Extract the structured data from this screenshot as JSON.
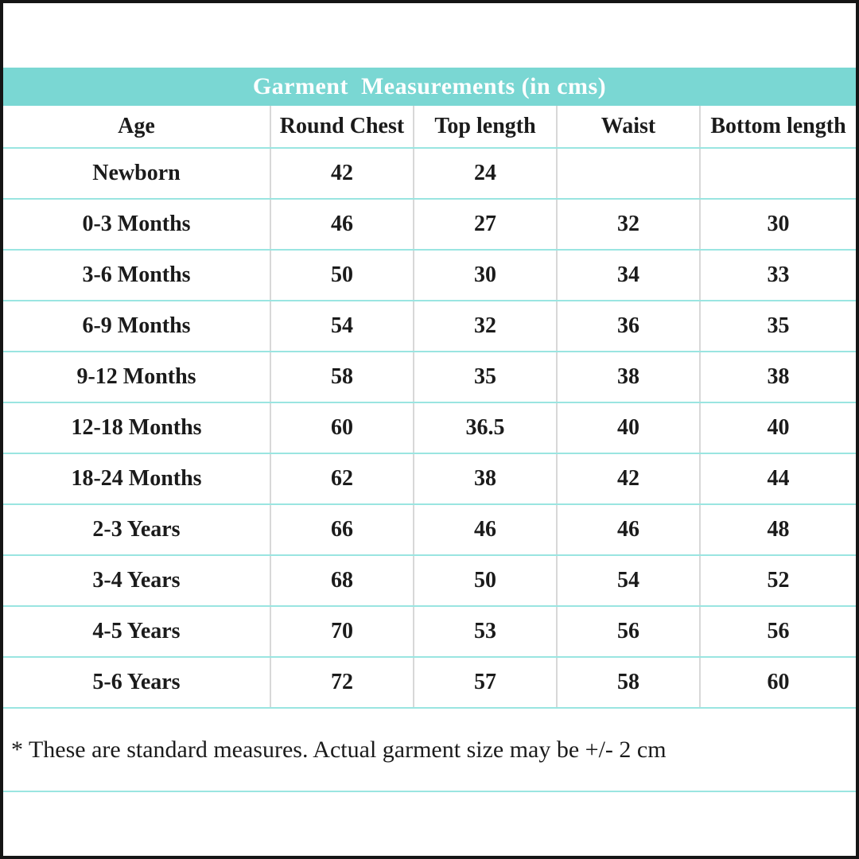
{
  "title_band": {
    "label": "Garment  Measurements (in cms)"
  },
  "table": {
    "columns": [
      "Age",
      "Round Chest",
      "Top length",
      "Waist",
      "Bottom length"
    ],
    "rows": [
      {
        "cells": [
          "Newborn",
          "42",
          "24",
          "",
          ""
        ]
      },
      {
        "cells": [
          "0-3 Months",
          "46",
          "27",
          "32",
          "30"
        ]
      },
      {
        "cells": [
          "3-6 Months",
          "50",
          "30",
          "34",
          "33"
        ]
      },
      {
        "cells": [
          "6-9 Months",
          "54",
          "32",
          "36",
          "35"
        ]
      },
      {
        "cells": [
          "9-12 Months",
          "58",
          "35",
          "38",
          "38"
        ]
      },
      {
        "cells": [
          "12-18 Months",
          "60",
          "36.5",
          "40",
          "40"
        ]
      },
      {
        "cells": [
          "18-24 Months",
          "62",
          "38",
          "42",
          "44"
        ]
      },
      {
        "cells": [
          "2-3 Years",
          "66",
          "46",
          "46",
          "48"
        ]
      },
      {
        "cells": [
          "3-4 Years",
          "68",
          "50",
          "54",
          "52"
        ]
      },
      {
        "cells": [
          "4-5 Years",
          "70",
          "53",
          "56",
          "56"
        ]
      },
      {
        "cells": [
          "5-6 Years",
          "72",
          "57",
          "58",
          "60"
        ]
      }
    ]
  },
  "footnote": "* These are standard measures. Actual garment size may be +/- 2 cm",
  "colors": {
    "band": "#7AD7D3",
    "row_divider": "#9AE5E1",
    "column_divider": "#D8D8D8",
    "frame": "#151515",
    "title_text": "#FFFFFF",
    "body_text": "#1B1B1B"
  }
}
